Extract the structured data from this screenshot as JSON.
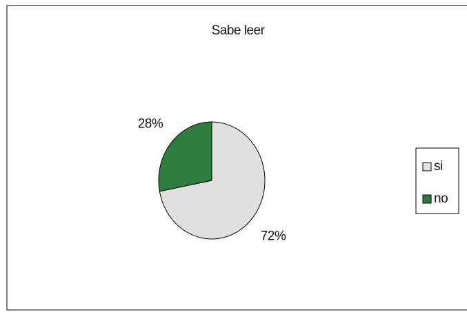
{
  "chart_data": {
    "type": "pie",
    "title": "Sabe leer",
    "categories": [
      "si",
      "no"
    ],
    "values": [
      72,
      28
    ],
    "value_labels": [
      "72%",
      "28%"
    ],
    "colors": [
      "#e0e0e0",
      "#2e7d3e"
    ],
    "legend": "right"
  }
}
